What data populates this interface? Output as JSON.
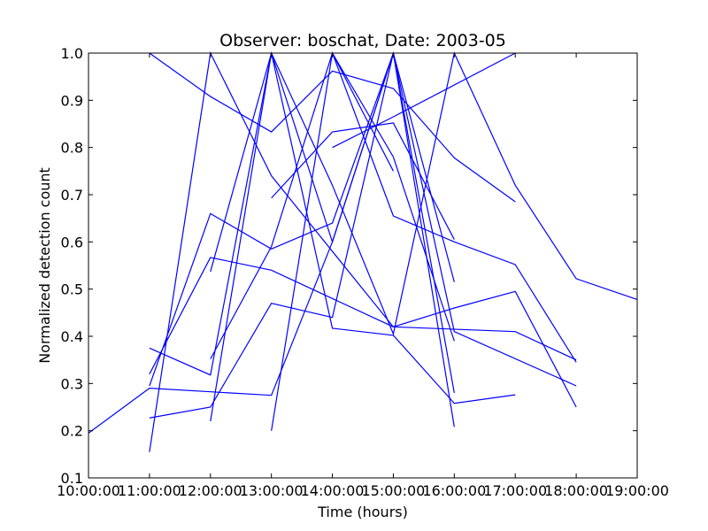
{
  "chart_data": {
    "type": "line",
    "title": "Observer: boschat, Date: 2003-05",
    "xlabel": "Time (hours)",
    "ylabel": "Normalized detection count",
    "xlim": [
      10,
      19
    ],
    "ylim": [
      0.1,
      1.0
    ],
    "x_ticks": [
      {
        "value": 10,
        "label": "10:00:00"
      },
      {
        "value": 11,
        "label": "11:00:00"
      },
      {
        "value": 12,
        "label": "12:00:00"
      },
      {
        "value": 13,
        "label": "13:00:00"
      },
      {
        "value": 14,
        "label": "14:00:00"
      },
      {
        "value": 15,
        "label": "15:00:00"
      },
      {
        "value": 16,
        "label": "16:00:00"
      },
      {
        "value": 17,
        "label": "17:00:00"
      },
      {
        "value": 18,
        "label": "18:00:00"
      },
      {
        "value": 19,
        "label": "19:00:00"
      }
    ],
    "y_ticks": [
      {
        "value": 0.1,
        "label": "0.1"
      },
      {
        "value": 0.2,
        "label": "0.2"
      },
      {
        "value": 0.3,
        "label": "0.3"
      },
      {
        "value": 0.4,
        "label": "0.4"
      },
      {
        "value": 0.5,
        "label": "0.5"
      },
      {
        "value": 0.6,
        "label": "0.6"
      },
      {
        "value": 0.7,
        "label": "0.7"
      },
      {
        "value": 0.8,
        "label": "0.8"
      },
      {
        "value": 0.9,
        "label": "0.9"
      },
      {
        "value": 1.0,
        "label": "1.0"
      }
    ],
    "grid": false,
    "legend": "none",
    "line_color": "#0000ff",
    "series": [
      {
        "points": [
          [
            10,
            0.195
          ],
          [
            11,
            0.29
          ],
          [
            13,
            0.275
          ],
          [
            14,
            0.6
          ],
          [
            15,
            1.0
          ],
          [
            16,
            0.28
          ]
        ]
      },
      {
        "points": [
          [
            11,
            0.155
          ],
          [
            12,
            1.0
          ],
          [
            13,
            0.74
          ],
          [
            15,
            0.42
          ],
          [
            17,
            0.41
          ],
          [
            18,
            0.35
          ]
        ]
      },
      {
        "points": [
          [
            11,
            0.295
          ],
          [
            12,
            0.66
          ],
          [
            13,
            0.585
          ],
          [
            14,
            0.64
          ],
          [
            15,
            1.0
          ],
          [
            16,
            0.41
          ],
          [
            18,
            0.295
          ]
        ]
      },
      {
        "points": [
          [
            11,
            0.375
          ],
          [
            12,
            0.318
          ],
          [
            13,
            1.0
          ],
          [
            14,
            0.6
          ],
          [
            15,
            1.0
          ],
          [
            16,
            0.208
          ]
        ]
      },
      {
        "points": [
          [
            11,
            0.32
          ],
          [
            12,
            0.567
          ],
          [
            13,
            0.54
          ],
          [
            15,
            0.42
          ],
          [
            16,
            0.46
          ],
          [
            17,
            0.495
          ],
          [
            18,
            0.25
          ]
        ]
      },
      {
        "points": [
          [
            11,
            0.227
          ],
          [
            12,
            0.25
          ],
          [
            13,
            0.47
          ],
          [
            14,
            0.44
          ],
          [
            15,
            1.0
          ],
          [
            16,
            0.515
          ]
        ]
      },
      {
        "points": [
          [
            11,
            1.0
          ],
          [
            12,
            0.908
          ],
          [
            13,
            0.833
          ],
          [
            14,
            0.962
          ],
          [
            15,
            0.925
          ],
          [
            16,
            0.778
          ],
          [
            17,
            0.685
          ]
        ]
      },
      {
        "points": [
          [
            12,
            0.22
          ],
          [
            13,
            1.0
          ],
          [
            14,
            0.72
          ],
          [
            15,
            0.405
          ],
          [
            16,
            1.0
          ],
          [
            17,
            0.72
          ],
          [
            18,
            0.522
          ],
          [
            19,
            0.478
          ]
        ]
      },
      {
        "points": [
          [
            12,
            0.537
          ],
          [
            13,
            1.0
          ],
          [
            14,
            0.417
          ],
          [
            15,
            0.402
          ],
          [
            16,
            0.258
          ],
          [
            17,
            0.276
          ]
        ]
      },
      {
        "points": [
          [
            12,
            0.352
          ],
          [
            13,
            0.59
          ],
          [
            14,
            1.0
          ],
          [
            15,
            0.655
          ],
          [
            16,
            0.6
          ],
          [
            17,
            0.552
          ],
          [
            18,
            0.345
          ]
        ]
      },
      {
        "points": [
          [
            13,
            0.2
          ],
          [
            14,
            1.0
          ],
          [
            15,
            0.78
          ],
          [
            16,
            0.39
          ]
        ]
      },
      {
        "points": [
          [
            13,
            0.693
          ],
          [
            14,
            0.833
          ],
          [
            15,
            0.852
          ],
          [
            16,
            0.605
          ]
        ]
      },
      {
        "points": [
          [
            14,
            0.8
          ],
          [
            15,
            0.865
          ],
          [
            17,
            1.0
          ]
        ]
      },
      {
        "points": [
          [
            14,
            1.0
          ],
          [
            15,
            0.75
          ]
        ]
      }
    ]
  }
}
